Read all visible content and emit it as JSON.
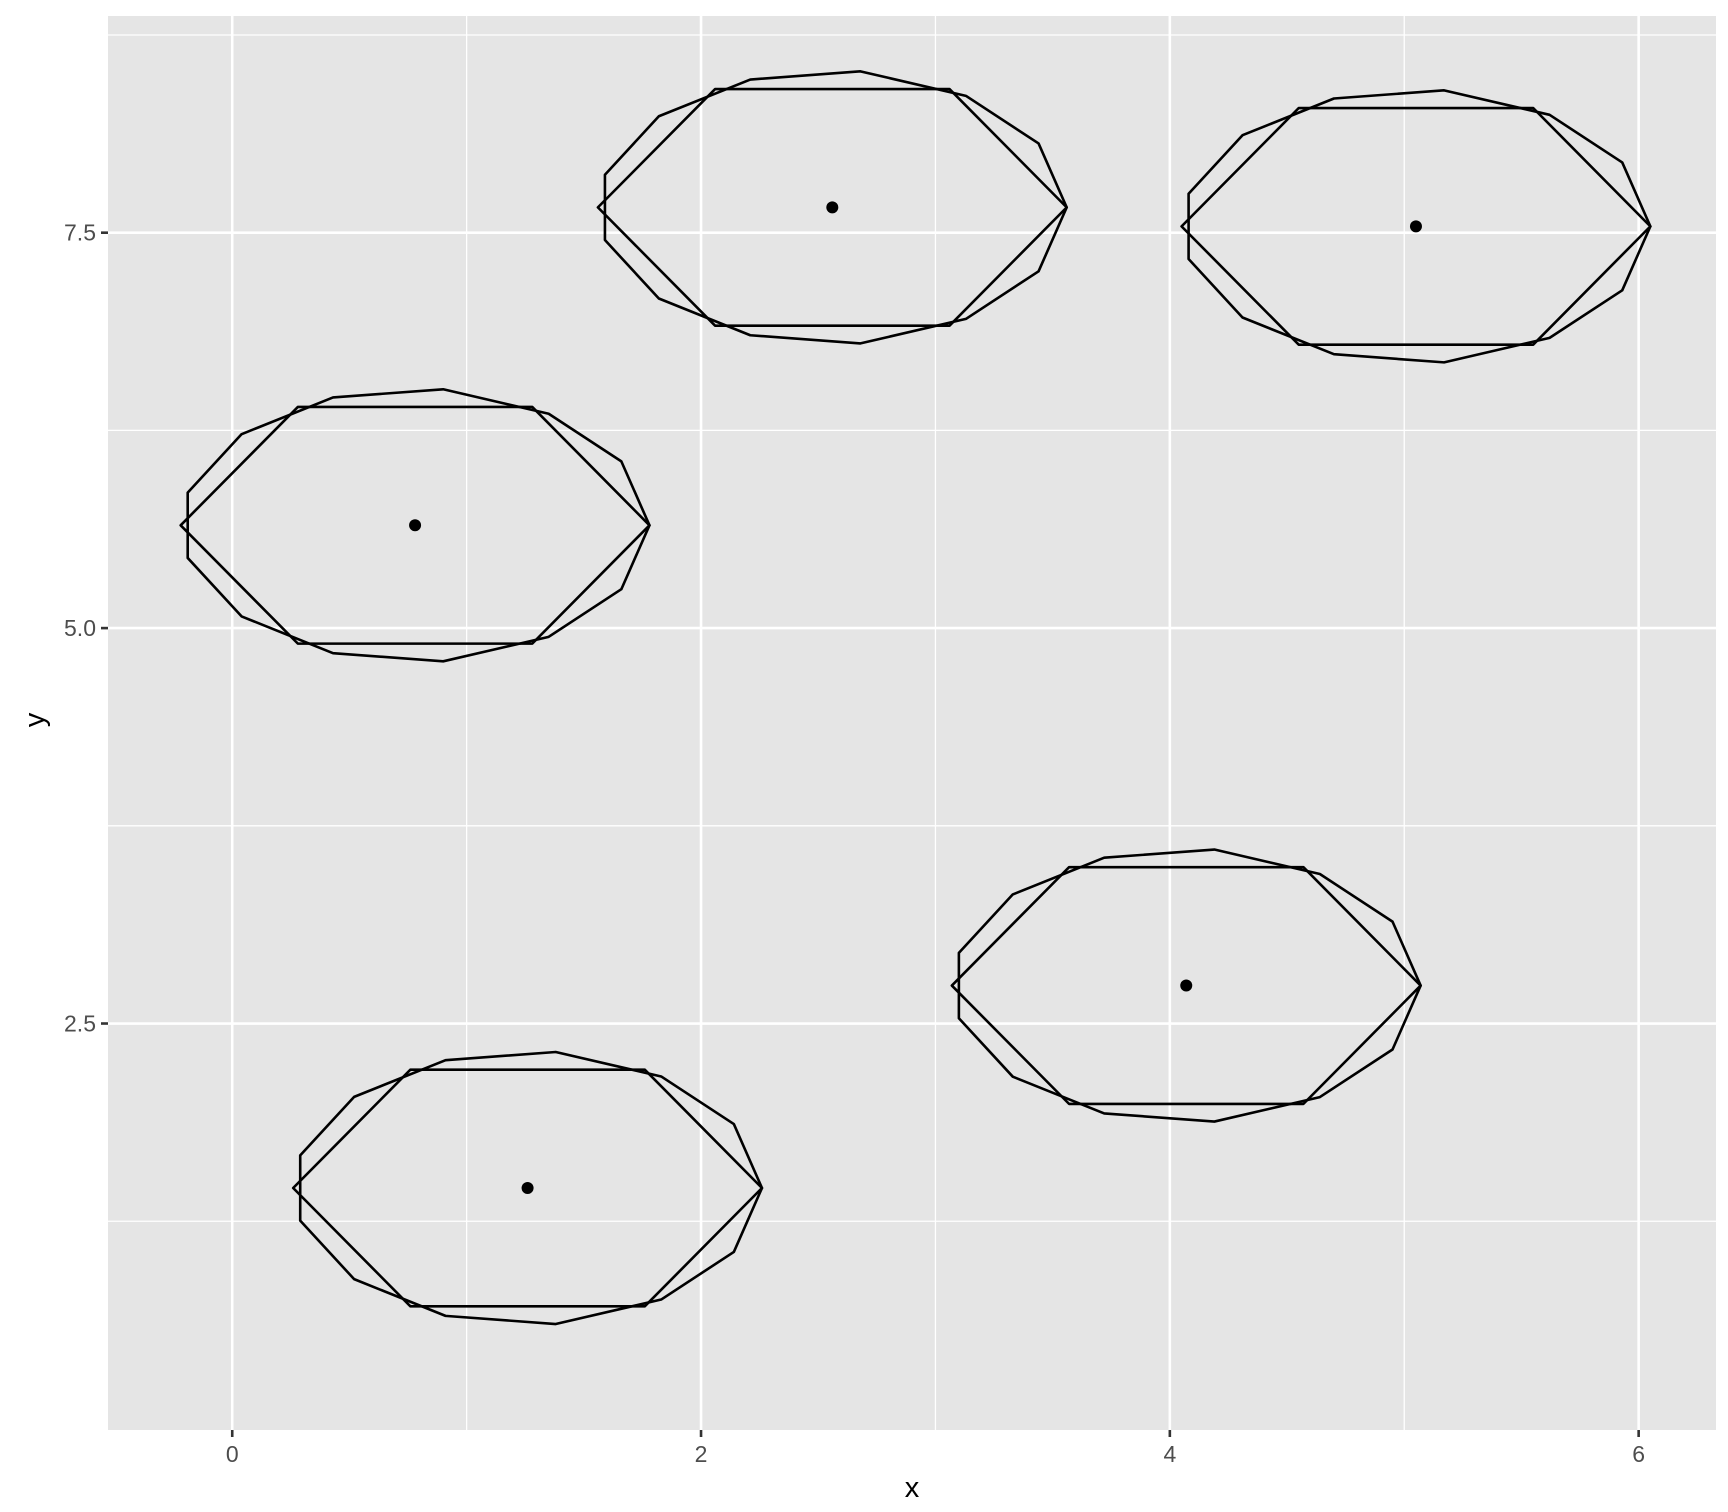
{
  "chart_data": {
    "type": "scatter",
    "title": "",
    "xlabel": "x",
    "ylabel": "y",
    "xlim": [
      -0.53,
      6.33
    ],
    "ylim": [
      -0.07,
      8.87
    ],
    "x_breaks": [
      0,
      2,
      4,
      6
    ],
    "x_tick_labels": [
      "0",
      "2",
      "4",
      "6"
    ],
    "x_minor_breaks": [
      1,
      3,
      5
    ],
    "y_breaks": [
      2.5,
      5.0,
      7.5
    ],
    "y_tick_labels": [
      "2.5",
      "5.0",
      "7.5"
    ],
    "y_minor_breaks": [
      1.25,
      3.75,
      6.25,
      8.75
    ],
    "grid": true,
    "legend": "none",
    "colors": {
      "panel": "#e5e5e5",
      "grid": "#ffffff",
      "ink": "#000000",
      "tick_text": "#4d4d4d"
    },
    "points": [
      {
        "x": 0.78,
        "y": 5.65
      },
      {
        "x": 1.26,
        "y": 1.46
      },
      {
        "x": 2.56,
        "y": 7.66
      },
      {
        "x": 4.07,
        "y": 2.74
      },
      {
        "x": 5.05,
        "y": 7.54
      }
    ],
    "shape_template": {
      "hexagon": [
        [
          -1.0,
          0.0
        ],
        [
          -0.5,
          0.87
        ],
        [
          0.5,
          0.87
        ],
        [
          1.0,
          0.0
        ],
        [
          0.5,
          -0.87
        ],
        [
          -0.5,
          -0.87
        ]
      ],
      "decagon": [
        [
          -0.97,
          0.24
        ],
        [
          -0.74,
          0.67
        ],
        [
          -0.35,
          0.94
        ],
        [
          0.12,
          1.0
        ],
        [
          0.57,
          0.82
        ],
        [
          0.88,
          0.47
        ],
        [
          1.0,
          0.0
        ],
        [
          0.88,
          -0.47
        ],
        [
          0.57,
          -0.82
        ],
        [
          0.12,
          -1.0
        ],
        [
          -0.35,
          -0.94
        ],
        [
          -0.74,
          -0.67
        ],
        [
          -0.97,
          -0.24
        ]
      ],
      "x_radius": 1.0,
      "y_radius": 0.86
    }
  }
}
